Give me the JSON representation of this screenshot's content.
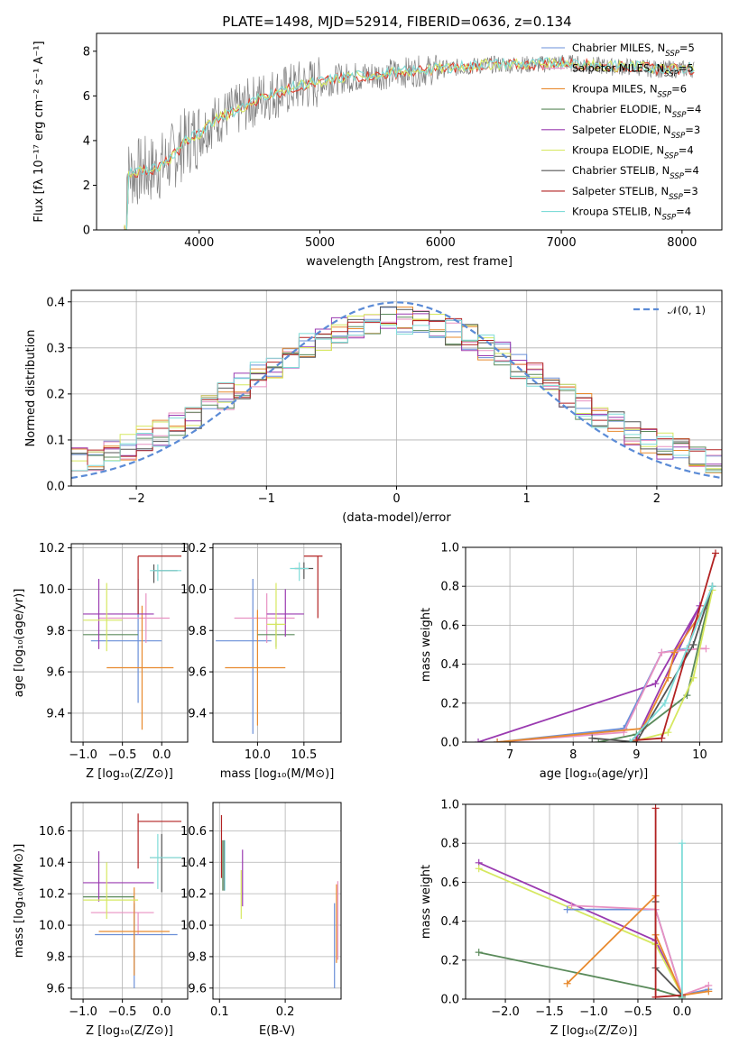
{
  "figure_title": "PLATE=1498, MJD=52914, FIBERID=0636, z=0.134",
  "colors": {
    "gray": "#808080",
    "red": "#e0402e",
    "chabrier_miles": "#6a8fd8",
    "salpeter_miles": "#e891c2",
    "kroupa_miles": "#e88a2e",
    "chabrier_elodie": "#5a8a5a",
    "salpeter_elodie": "#9a3ab0",
    "kroupa_elodie": "#d6e860",
    "chabrier_stelib": "#555555",
    "salpeter_stelib": "#b22222",
    "kroupa_stelib": "#7fdcd8",
    "normal": "#5b8bd6"
  },
  "chart_data": [
    {
      "id": "spectrum",
      "type": "line",
      "title": "PLATE=1498, MJD=52914, FIBERID=0636, z=0.134",
      "xlabel": "wavelength [Angstrom, rest frame]",
      "ylabel": "Flux [fλ 10⁻¹⁷ erg cm⁻² s⁻¹ A⁻¹]",
      "xlim": [
        3150,
        8330
      ],
      "ylim": [
        0,
        8.8
      ],
      "xticks": [
        4000,
        5000,
        6000,
        7000,
        8000
      ],
      "yticks": [
        0,
        2,
        4,
        6,
        8
      ],
      "legend_placement": "top-right",
      "legend": [
        "Chabrier MILES, N_SSP=5",
        "Salpeter MILES, N_SSP=5",
        "Kroupa MILES, N_SSP=6",
        "Chabrier ELODIE, N_SSP=4",
        "Salpeter ELODIE, N_SSP=3",
        "Kroupa ELODIE, N_SSP=4",
        "Chabrier STELIB, N_SSP=4",
        "Salpeter STELIB, N_SSP=3",
        "Kroupa STELIB, N_SSP=4"
      ],
      "x": [
        3400,
        3500,
        3600,
        3700,
        3800,
        3900,
        4000,
        4100,
        4200,
        4300,
        4400,
        4500,
        4600,
        4700,
        4800,
        4900,
        5000,
        5200,
        5400,
        5600,
        5800,
        6000,
        6200,
        6400,
        6600,
        6800,
        7000,
        7200,
        7400,
        7600,
        7800,
        8000,
        8100
      ],
      "model_flux": [
        2.5,
        2.6,
        2.7,
        2.9,
        3.4,
        4.0,
        4.3,
        4.8,
        5.1,
        5.3,
        5.6,
        5.9,
        6.1,
        6.2,
        6.4,
        6.5,
        6.6,
        6.8,
        6.9,
        7.0,
        7.1,
        7.2,
        7.3,
        7.4,
        7.4,
        7.4,
        7.5,
        7.4,
        7.3,
        7.3,
        7.2,
        7.2,
        7.2
      ]
    },
    {
      "id": "residuals",
      "type": "line",
      "xlabel": "(data-model)/error",
      "ylabel": "Normed distribution",
      "xlim": [
        -2.5,
        2.5
      ],
      "ylim": [
        0,
        0.425
      ],
      "xticks": [
        -2,
        -1,
        0,
        1,
        2
      ],
      "yticks": [
        0.0,
        0.1,
        0.2,
        0.3,
        0.4
      ],
      "legend": [
        "𝒩(0, 1)"
      ],
      "legend_placement": "top-right",
      "x": [
        -2.5,
        -2.25,
        -2.0,
        -1.75,
        -1.5,
        -1.25,
        -1.0,
        -0.75,
        -0.5,
        -0.25,
        0.0,
        0.25,
        0.5,
        0.75,
        1.0,
        1.25,
        1.5,
        1.75,
        2.0,
        2.25,
        2.5
      ],
      "hist_mean": [
        0.03,
        0.06,
        0.1,
        0.15,
        0.18,
        0.21,
        0.26,
        0.31,
        0.33,
        0.34,
        0.34,
        0.34,
        0.33,
        0.3,
        0.25,
        0.2,
        0.16,
        0.12,
        0.08,
        0.05,
        0.03
      ]
    },
    {
      "id": "age-vs-z",
      "type": "scatter",
      "xlabel": "Z [log₁₀(Z/Z⊙)]",
      "ylabel": "age  [log₁₀(age/yr)]",
      "xlim": [
        -1.15,
        0.33
      ],
      "ylim": [
        9.26,
        10.22
      ],
      "xticks": [
        -1.0,
        -0.5,
        0.0
      ],
      "yticks": [
        9.4,
        9.6,
        9.8,
        10.0,
        10.2
      ],
      "points": [
        {
          "x": -0.3,
          "y": 9.75,
          "xerr": [
            0.6,
            0.3
          ],
          "yerr": [
            0.3,
            0.3
          ],
          "series": "chabrier_miles"
        },
        {
          "x": -0.2,
          "y": 9.86,
          "xerr": [
            0.6,
            0.3
          ],
          "yerr": [
            0.12,
            0.12
          ],
          "series": "salpeter_miles"
        },
        {
          "x": -0.25,
          "y": 9.62,
          "xerr": [
            0.45,
            0.4
          ],
          "yerr": [
            0.3,
            0.3
          ],
          "series": "kroupa_miles"
        },
        {
          "x": -0.8,
          "y": 9.78,
          "xerr": [
            0.2,
            0.5
          ],
          "yerr": [
            0.0,
            0.0
          ],
          "series": "chabrier_elodie"
        },
        {
          "x": -0.8,
          "y": 9.88,
          "xerr": [
            0.2,
            0.7
          ],
          "yerr": [
            0.17,
            0.17
          ],
          "series": "salpeter_elodie"
        },
        {
          "x": -0.7,
          "y": 9.85,
          "xerr": [
            0.3,
            0.2
          ],
          "yerr": [
            0.15,
            0.18
          ],
          "series": "kroupa_elodie"
        },
        {
          "x": -0.1,
          "y": 10.09,
          "xerr": [
            0.0,
            0.3
          ],
          "yerr": [
            0.06,
            0.03
          ],
          "series": "chabrier_stelib"
        },
        {
          "x": -0.3,
          "y": 10.16,
          "xerr": [
            0.0,
            0.55
          ],
          "yerr": [
            0.28,
            0.0
          ],
          "series": "salpeter_stelib"
        },
        {
          "x": -0.05,
          "y": 10.09,
          "xerr": [
            0.1,
            0.3
          ],
          "yerr": [
            0.05,
            0.03
          ],
          "series": "kroupa_stelib"
        }
      ]
    },
    {
      "id": "age-vs-mass",
      "type": "scatter",
      "xlabel": "mass [log₁₀(M/M⊙)]",
      "xlim": [
        9.52,
        10.9
      ],
      "ylim": [
        9.26,
        10.22
      ],
      "xticks": [
        10.0,
        10.5
      ],
      "yticks": [
        9.4,
        9.6,
        9.8,
        10.0,
        10.2
      ],
      "points": [
        {
          "x": 9.95,
          "y": 9.75,
          "xerr": [
            0.4,
            0.2
          ],
          "yerr": [
            0.45,
            0.3
          ],
          "series": "chabrier_miles"
        },
        {
          "x": 10.1,
          "y": 9.86,
          "xerr": [
            0.35,
            0.3
          ],
          "yerr": [
            0.12,
            0.12
          ],
          "series": "salpeter_miles"
        },
        {
          "x": 10.0,
          "y": 9.62,
          "xerr": [
            0.35,
            0.3
          ],
          "yerr": [
            0.28,
            0.28
          ],
          "series": "kroupa_miles"
        },
        {
          "x": 10.2,
          "y": 9.78,
          "xerr": [
            0.2,
            0.2
          ],
          "yerr": [
            0.06,
            0.06
          ],
          "series": "chabrier_elodie"
        },
        {
          "x": 10.3,
          "y": 9.88,
          "xerr": [
            0.2,
            0.2
          ],
          "yerr": [
            0.11,
            0.12
          ],
          "series": "salpeter_elodie"
        },
        {
          "x": 10.2,
          "y": 9.83,
          "xerr": [
            0.1,
            0.1
          ],
          "yerr": [
            0.12,
            0.2
          ],
          "series": "kroupa_elodie"
        },
        {
          "x": 10.5,
          "y": 10.1,
          "xerr": [
            0.1,
            0.1
          ],
          "yerr": [
            0.05,
            0.03
          ],
          "series": "chabrier_stelib"
        },
        {
          "x": 10.65,
          "y": 10.16,
          "xerr": [
            0.15,
            0.05
          ],
          "yerr": [
            0.3,
            0.0
          ],
          "series": "salpeter_stelib"
        },
        {
          "x": 10.45,
          "y": 10.1,
          "xerr": [
            0.1,
            0.1
          ],
          "yerr": [
            0.06,
            0.03
          ],
          "series": "kroupa_stelib"
        }
      ]
    },
    {
      "id": "weight-vs-age",
      "type": "line",
      "xlabel": "age  [log₁₀(age/yr)]",
      "ylabel": "mass weight",
      "xlim": [
        6.3,
        10.35
      ],
      "ylim": [
        0,
        1
      ],
      "xticks": [
        7,
        8,
        9,
        10
      ],
      "yticks": [
        0.0,
        0.2,
        0.4,
        0.6,
        0.8,
        1.0
      ],
      "series": [
        {
          "series": "salpeter_elodie",
          "x": [
            6.5,
            9.3,
            10.0,
            9.0
          ],
          "y": [
            0.0,
            0.3,
            0.7,
            0.02
          ]
        },
        {
          "series": "chabrier_miles",
          "x": [
            6.8,
            8.8,
            9.4,
            9.8,
            10.2
          ],
          "y": [
            0.0,
            0.07,
            0.46,
            0.48,
            0.8
          ]
        },
        {
          "series": "salpeter_miles",
          "x": [
            6.8,
            8.8,
            9.4,
            10.0,
            10.1
          ],
          "y": [
            0.0,
            0.05,
            0.46,
            0.48,
            0.48
          ]
        },
        {
          "series": "kroupa_miles",
          "x": [
            6.8,
            9.1,
            9.5,
            9.6,
            10.1
          ],
          "y": [
            0.0,
            0.07,
            0.33,
            0.46,
            0.7
          ]
        },
        {
          "series": "chabrier_elodie",
          "x": [
            8.4,
            9.0,
            9.8,
            10.2
          ],
          "y": [
            0.0,
            0.04,
            0.24,
            0.8
          ]
        },
        {
          "series": "kroupa_elodie",
          "x": [
            8.9,
            9.5,
            9.9,
            10.2
          ],
          "y": [
            0.0,
            0.05,
            0.33,
            0.78
          ]
        },
        {
          "series": "chabrier_stelib",
          "x": [
            8.3,
            9.0,
            9.9,
            10.2
          ],
          "y": [
            0.02,
            0.0,
            0.5,
            0.8
          ]
        },
        {
          "series": "salpeter_stelib",
          "x": [
            9.0,
            9.4,
            10.25
          ],
          "y": [
            0.01,
            0.02,
            0.97
          ]
        },
        {
          "series": "kroupa_stelib",
          "x": [
            8.9,
            9.45,
            9.8,
            10.2
          ],
          "y": [
            0.0,
            0.2,
            0.48,
            0.8
          ]
        }
      ]
    },
    {
      "id": "mass-vs-z",
      "type": "scatter",
      "xlabel": "Z [log₁₀(Z/Z⊙)]",
      "ylabel": "mass [log₁₀(M/M⊙)]",
      "xlim": [
        -1.15,
        0.33
      ],
      "ylim": [
        9.53,
        10.78
      ],
      "xticks": [
        -1.0,
        -0.5,
        0.0
      ],
      "yticks": [
        9.6,
        9.8,
        10.0,
        10.2,
        10.4,
        10.6
      ],
      "points": [
        {
          "x": -0.35,
          "y": 9.94,
          "xerr": [
            0.5,
            0.55
          ],
          "yerr": [
            0.34,
            0.2
          ],
          "series": "chabrier_miles"
        },
        {
          "x": -0.3,
          "y": 10.08,
          "xerr": [
            0.6,
            0.2
          ],
          "yerr": [
            0.14,
            0.0
          ],
          "series": "salpeter_miles"
        },
        {
          "x": -0.35,
          "y": 9.96,
          "xerr": [
            0.45,
            0.45
          ],
          "yerr": [
            0.28,
            0.28
          ],
          "series": "kroupa_miles"
        },
        {
          "x": -0.8,
          "y": 10.18,
          "xerr": [
            0.2,
            0.45
          ],
          "yerr": [
            0.0,
            0.0
          ],
          "series": "chabrier_elodie"
        },
        {
          "x": -0.8,
          "y": 10.27,
          "xerr": [
            0.2,
            0.7
          ],
          "yerr": [
            0.12,
            0.2
          ],
          "series": "salpeter_elodie"
        },
        {
          "x": -0.7,
          "y": 10.16,
          "xerr": [
            0.3,
            0.4
          ],
          "yerr": [
            0.12,
            0.24
          ],
          "series": "kroupa_elodie"
        },
        {
          "x": 0.0,
          "y": 10.43,
          "xerr": [
            0.15,
            0.25
          ],
          "yerr": [
            0.22,
            0.15
          ],
          "series": "chabrier_stelib"
        },
        {
          "x": -0.3,
          "y": 10.66,
          "xerr": [
            0.0,
            0.55
          ],
          "yerr": [
            0.3,
            0.05
          ],
          "series": "salpeter_stelib"
        },
        {
          "x": -0.05,
          "y": 10.43,
          "xerr": [
            0.1,
            0.3
          ],
          "yerr": [
            0.2,
            0.15
          ],
          "series": "kroupa_stelib"
        }
      ]
    },
    {
      "id": "mass-vs-ebv",
      "type": "scatter",
      "xlabel": "E(B-V)",
      "xlim": [
        0.09,
        0.285
      ],
      "ylim": [
        9.53,
        10.78
      ],
      "xticks": [
        0.1,
        0.2
      ],
      "yticks": [
        9.6,
        9.8,
        10.0,
        10.2,
        10.4,
        10.6
      ],
      "points": [
        {
          "x": 0.275,
          "y": 9.94,
          "xerr": [
            0.0,
            0.0
          ],
          "yerr": [
            0.34,
            0.2
          ],
          "series": "chabrier_miles"
        },
        {
          "x": 0.28,
          "y": 10.08,
          "xerr": [
            0.0,
            0.0
          ],
          "yerr": [
            0.3,
            0.2
          ],
          "series": "salpeter_miles"
        },
        {
          "x": 0.278,
          "y": 9.96,
          "xerr": [
            0.0,
            0.0
          ],
          "yerr": [
            0.2,
            0.3
          ],
          "series": "kroupa_miles"
        },
        {
          "x": 0.105,
          "y": 10.38,
          "xerr": [
            0.0,
            0.0
          ],
          "yerr": [
            0.16,
            0.16
          ],
          "series": "chabrier_elodie"
        },
        {
          "x": 0.135,
          "y": 10.3,
          "xerr": [
            0.0,
            0.0
          ],
          "yerr": [
            0.18,
            0.18
          ],
          "series": "salpeter_elodie"
        },
        {
          "x": 0.133,
          "y": 10.2,
          "xerr": [
            0.0,
            0.0
          ],
          "yerr": [
            0.16,
            0.15
          ],
          "series": "kroupa_elodie"
        },
        {
          "x": 0.107,
          "y": 10.38,
          "xerr": [
            0.0,
            0.0
          ],
          "yerr": [
            0.16,
            0.16
          ],
          "series": "chabrier_stelib"
        },
        {
          "x": 0.103,
          "y": 10.5,
          "xerr": [
            0.0,
            0.0
          ],
          "yerr": [
            0.2,
            0.2
          ],
          "series": "salpeter_stelib"
        },
        {
          "x": 0.108,
          "y": 10.38,
          "xerr": [
            0.0,
            0.0
          ],
          "yerr": [
            0.16,
            0.16
          ],
          "series": "kroupa_stelib"
        }
      ]
    },
    {
      "id": "weight-vs-z",
      "type": "line",
      "xlabel": "Z [log₁₀(Z/Z⊙)]",
      "ylabel": "mass weight",
      "xlim": [
        -2.45,
        0.45
      ],
      "ylim": [
        0,
        1
      ],
      "xticks": [
        -2.0,
        -1.5,
        -1.0,
        -0.5,
        0.0
      ],
      "yticks": [
        0.0,
        0.2,
        0.4,
        0.6,
        0.8,
        1.0
      ],
      "series": [
        {
          "series": "salpeter_elodie",
          "x": [
            -2.3,
            -0.3,
            0.0
          ],
          "y": [
            0.7,
            0.3,
            0.02
          ]
        },
        {
          "series": "kroupa_elodie",
          "x": [
            -2.3,
            -0.3,
            0.0
          ],
          "y": [
            0.67,
            0.28,
            0.02
          ]
        },
        {
          "series": "chabrier_elodie",
          "x": [
            -2.3,
            -0.3,
            0.0
          ],
          "y": [
            0.24,
            0.05,
            0.01
          ]
        },
        {
          "series": "chabrier_miles",
          "x": [
            -1.3,
            -0.3,
            0.0,
            0.3
          ],
          "y": [
            0.46,
            0.46,
            0.02,
            0.05
          ]
        },
        {
          "series": "salpeter_miles",
          "x": [
            -1.25,
            -0.3,
            0.0,
            0.3
          ],
          "y": [
            0.48,
            0.46,
            0.02,
            0.07
          ]
        },
        {
          "series": "kroupa_miles",
          "x": [
            -1.3,
            -0.3,
            -0.3,
            0.0,
            0.3
          ],
          "y": [
            0.08,
            0.53,
            0.33,
            0.02,
            0.04
          ]
        },
        {
          "series": "chabrier_stelib",
          "x": [
            -0.3,
            -0.3,
            0.0
          ],
          "y": [
            0.5,
            0.16,
            0.02
          ]
        },
        {
          "series": "salpeter_stelib",
          "x": [
            -0.3,
            -0.3,
            0.0
          ],
          "y": [
            0.98,
            0.01,
            0.02
          ]
        },
        {
          "series": "kroupa_stelib",
          "x": [
            0.0,
            0.0
          ],
          "y": [
            0.8,
            0.0
          ]
        }
      ]
    }
  ]
}
